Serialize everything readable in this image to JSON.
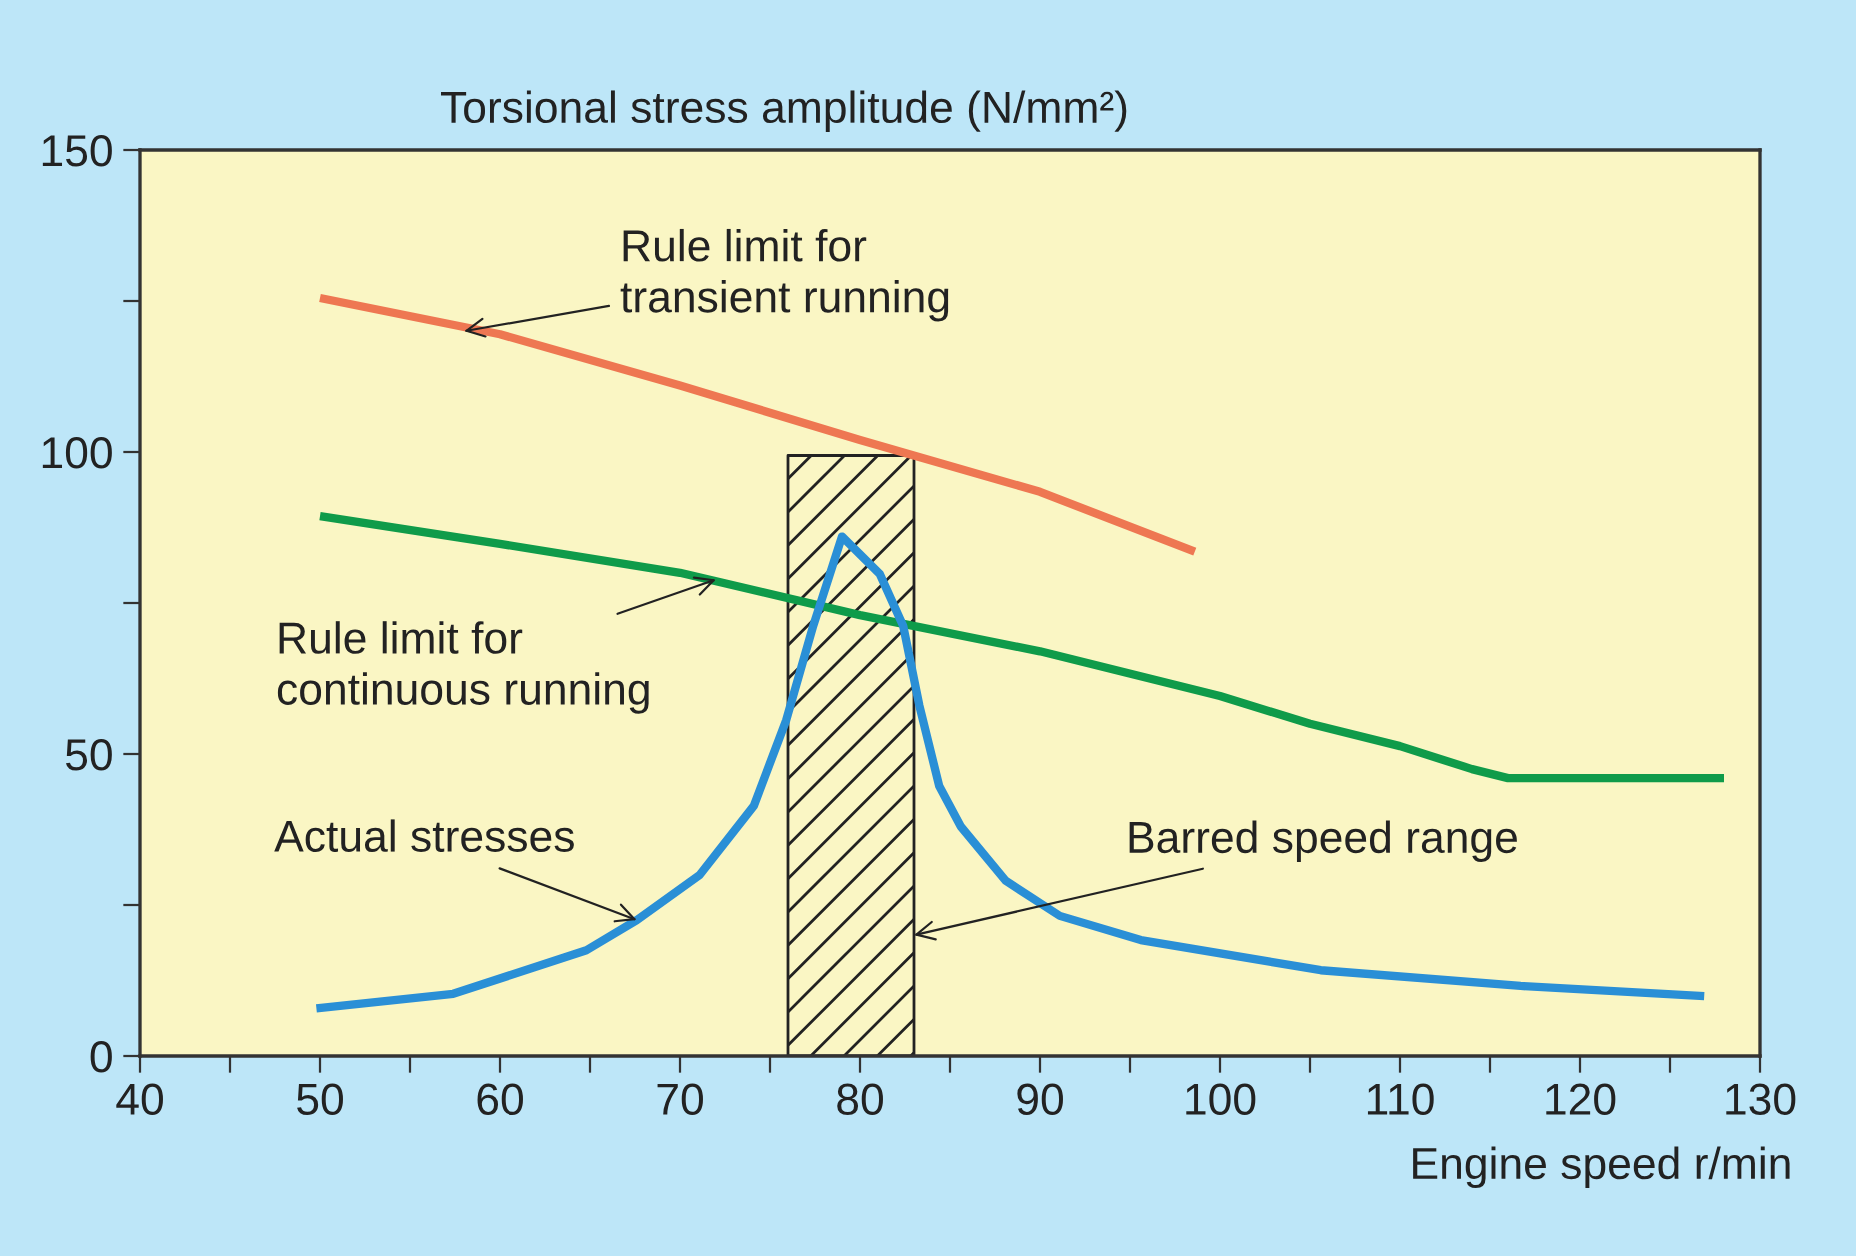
{
  "chart_data": {
    "type": "line",
    "ylabel": "Torsional stress amplitude (N/mm²)",
    "xlabel": "Engine speed r/min",
    "xlim": [
      40,
      130
    ],
    "ylim": [
      0,
      150
    ],
    "xticks": [
      40,
      {
        "value": 45,
        "label": null
      },
      50,
      {
        "value": 55,
        "label": null
      },
      60,
      {
        "value": 65,
        "label": null
      },
      70,
      {
        "value": 75,
        "label": null
      },
      80,
      {
        "value": 85,
        "label": null
      },
      90,
      {
        "value": 95,
        "label": null
      },
      100,
      {
        "value": 105,
        "label": null
      },
      110,
      {
        "value": 115,
        "label": null
      },
      120,
      {
        "value": 125,
        "label": null
      },
      130
    ],
    "yticks": [
      0,
      {
        "value": 25,
        "label": null
      },
      50,
      {
        "value": 75,
        "label": null
      },
      100,
      {
        "value": 125,
        "label": null
      },
      150
    ],
    "grid": false,
    "legend": false,
    "marker": "none",
    "line_style": "solid",
    "series": [
      {
        "color": "#ee7752",
        "x": [
          50,
          60,
          70,
          80,
          90,
          98.6
        ],
        "values": [
          125.5,
          119.5,
          111,
          102,
          93.4,
          83.5
        ]
      },
      {
        "color": "#0f9b4a",
        "x": [
          50,
          60,
          70,
          80,
          90,
          100,
          105,
          110,
          114,
          116,
          128
        ],
        "values": [
          89.4,
          84.8,
          80,
          73,
          67,
          59.6,
          55,
          51.3,
          47.5,
          46,
          46
        ]
      },
      {
        "color": "#2a8fd6",
        "x": [
          49.8,
          57.4,
          64.8,
          67.6,
          71.1,
          74.1,
          75.9,
          77.4,
          79,
          81.1,
          82.4,
          83.3,
          84.4,
          85.6,
          88.1,
          91.1,
          95.6,
          105.6,
          116.7,
          126.9
        ],
        "values": [
          7.9,
          10.3,
          17.5,
          22.5,
          30,
          41.4,
          55.6,
          71.2,
          86,
          79.8,
          71.2,
          58,
          44.7,
          38,
          29,
          23.2,
          19.2,
          14.2,
          11.6,
          9.9
        ]
      }
    ],
    "bands": [
      {
        "axis": "x",
        "from": 76,
        "to": 83
      }
    ],
    "annotations": [
      {
        "text": "Rule limit for\ntransient running",
        "x": 58,
        "y": 120
      },
      {
        "text": "Rule limit for\ncontinuous running",
        "x": 72,
        "y": 78.9
      },
      {
        "text": "Actual stresses",
        "x": 67.6,
        "y": 22.5
      },
      {
        "text": "Barred speed range",
        "x": 83,
        "y": 20
      }
    ]
  }
}
